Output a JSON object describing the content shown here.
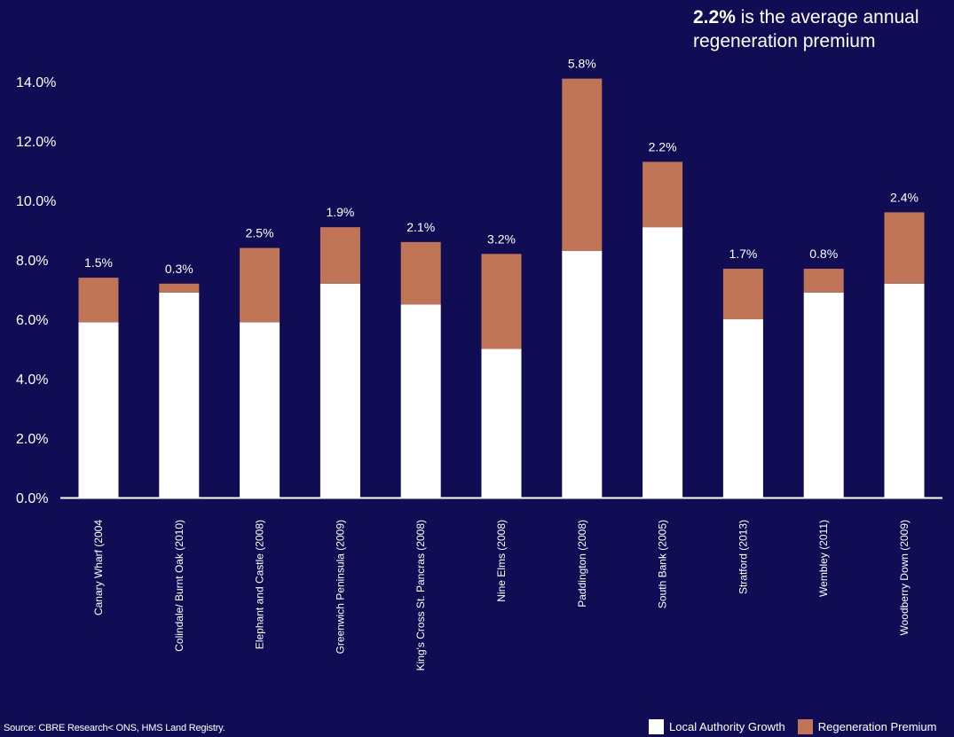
{
  "callout": {
    "bold": "2.2%",
    "text": " is the average annual regeneration premium"
  },
  "source": "Source: CBRE Research< ONS, HMS Land Registry.",
  "colors": {
    "background": "#110d54",
    "local": "#ffffff",
    "premium": "#bf7556",
    "text": "#ffffff"
  },
  "chart_data": {
    "type": "bar",
    "stacked": true,
    "categories": [
      "Canary Wharf (2004",
      "Colindale/ Burnt Oak (2010)",
      "Elephant and Castle (2008)",
      "Greenwich Peninsula (2009)",
      "King's Cross St. Pancras (2008)",
      "Nine Elms (2008)",
      "Paddington (2008)",
      "South Bank (2005)",
      "Stratford (2013)",
      "Wembley (2011)",
      "Woodberry Down (2009)"
    ],
    "series": [
      {
        "name": "Local Authority Growth",
        "values": [
          5.9,
          6.9,
          5.9,
          7.2,
          6.5,
          5.0,
          8.3,
          9.1,
          6.0,
          6.9,
          7.2
        ]
      },
      {
        "name": "Regeneration Premium",
        "values": [
          1.5,
          0.3,
          2.5,
          1.9,
          2.1,
          3.2,
          5.8,
          2.2,
          1.7,
          0.8,
          2.4
        ]
      }
    ],
    "data_labels": [
      "1.5%",
      "0.3%",
      "2.5%",
      "1.9%",
      "2.1%",
      "3.2%",
      "5.8%",
      "2.2%",
      "1.7%",
      "0.8%",
      "2.4%"
    ],
    "y_ticks": [
      "0.0%",
      "2.0%",
      "4.0%",
      "6.0%",
      "8.0%",
      "10.0%",
      "12.0%",
      "14.0%"
    ],
    "ylim": [
      0,
      15
    ],
    "grid": false,
    "legend_position": "bottom-right"
  }
}
